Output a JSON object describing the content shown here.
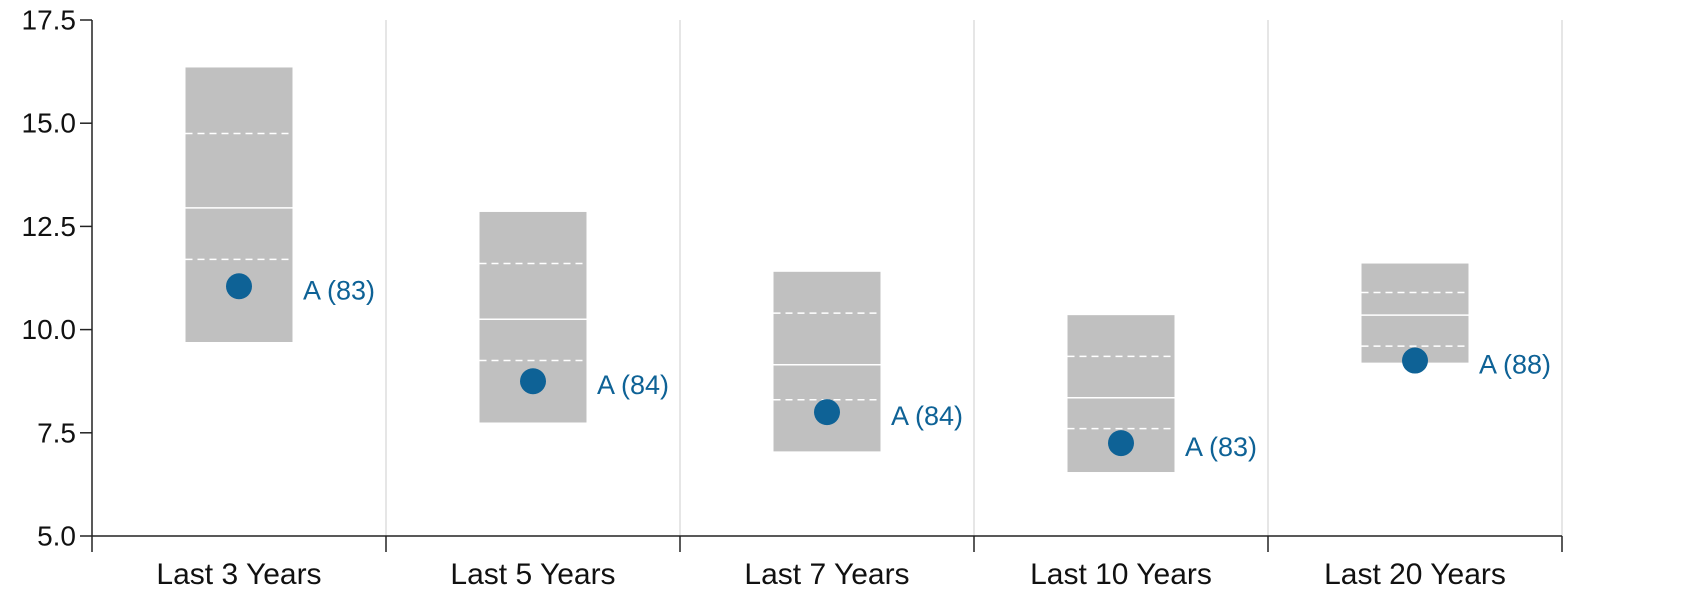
{
  "chart_data": {
    "type": "box",
    "ylim": [
      5.0,
      17.5
    ],
    "yticks": [
      "5.0",
      "7.5",
      "10.0",
      "12.5",
      "15.0",
      "17.5"
    ],
    "categories": [
      "Last 3 Years",
      "Last 5 Years",
      "Last 7 Years",
      "Last 10 Years",
      "Last 20 Years"
    ],
    "ranges": [
      {
        "low": 9.7,
        "q1": 11.7,
        "median": 12.95,
        "q3": 14.75,
        "high": 16.35
      },
      {
        "low": 7.75,
        "q1": 9.25,
        "median": 10.25,
        "q3": 11.6,
        "high": 12.85
      },
      {
        "low": 7.05,
        "q1": 8.3,
        "median": 9.15,
        "q3": 10.4,
        "high": 11.4
      },
      {
        "low": 6.55,
        "q1": 7.6,
        "median": 8.35,
        "q3": 9.35,
        "high": 10.35
      },
      {
        "low": 9.2,
        "q1": 9.6,
        "median": 10.35,
        "q3": 10.9,
        "high": 11.6
      }
    ],
    "points": [
      {
        "value": 11.05,
        "label": "A (83)"
      },
      {
        "value": 8.75,
        "label": "A (84)"
      },
      {
        "value": 8.0,
        "label": "A (84)"
      },
      {
        "value": 7.25,
        "label": "A (83)"
      },
      {
        "value": 9.25,
        "label": "A (88)"
      }
    ],
    "colors": {
      "range": "#c0c0c0",
      "point": "#0e6296",
      "axis": "#222222",
      "divider": "#cccccc"
    }
  }
}
